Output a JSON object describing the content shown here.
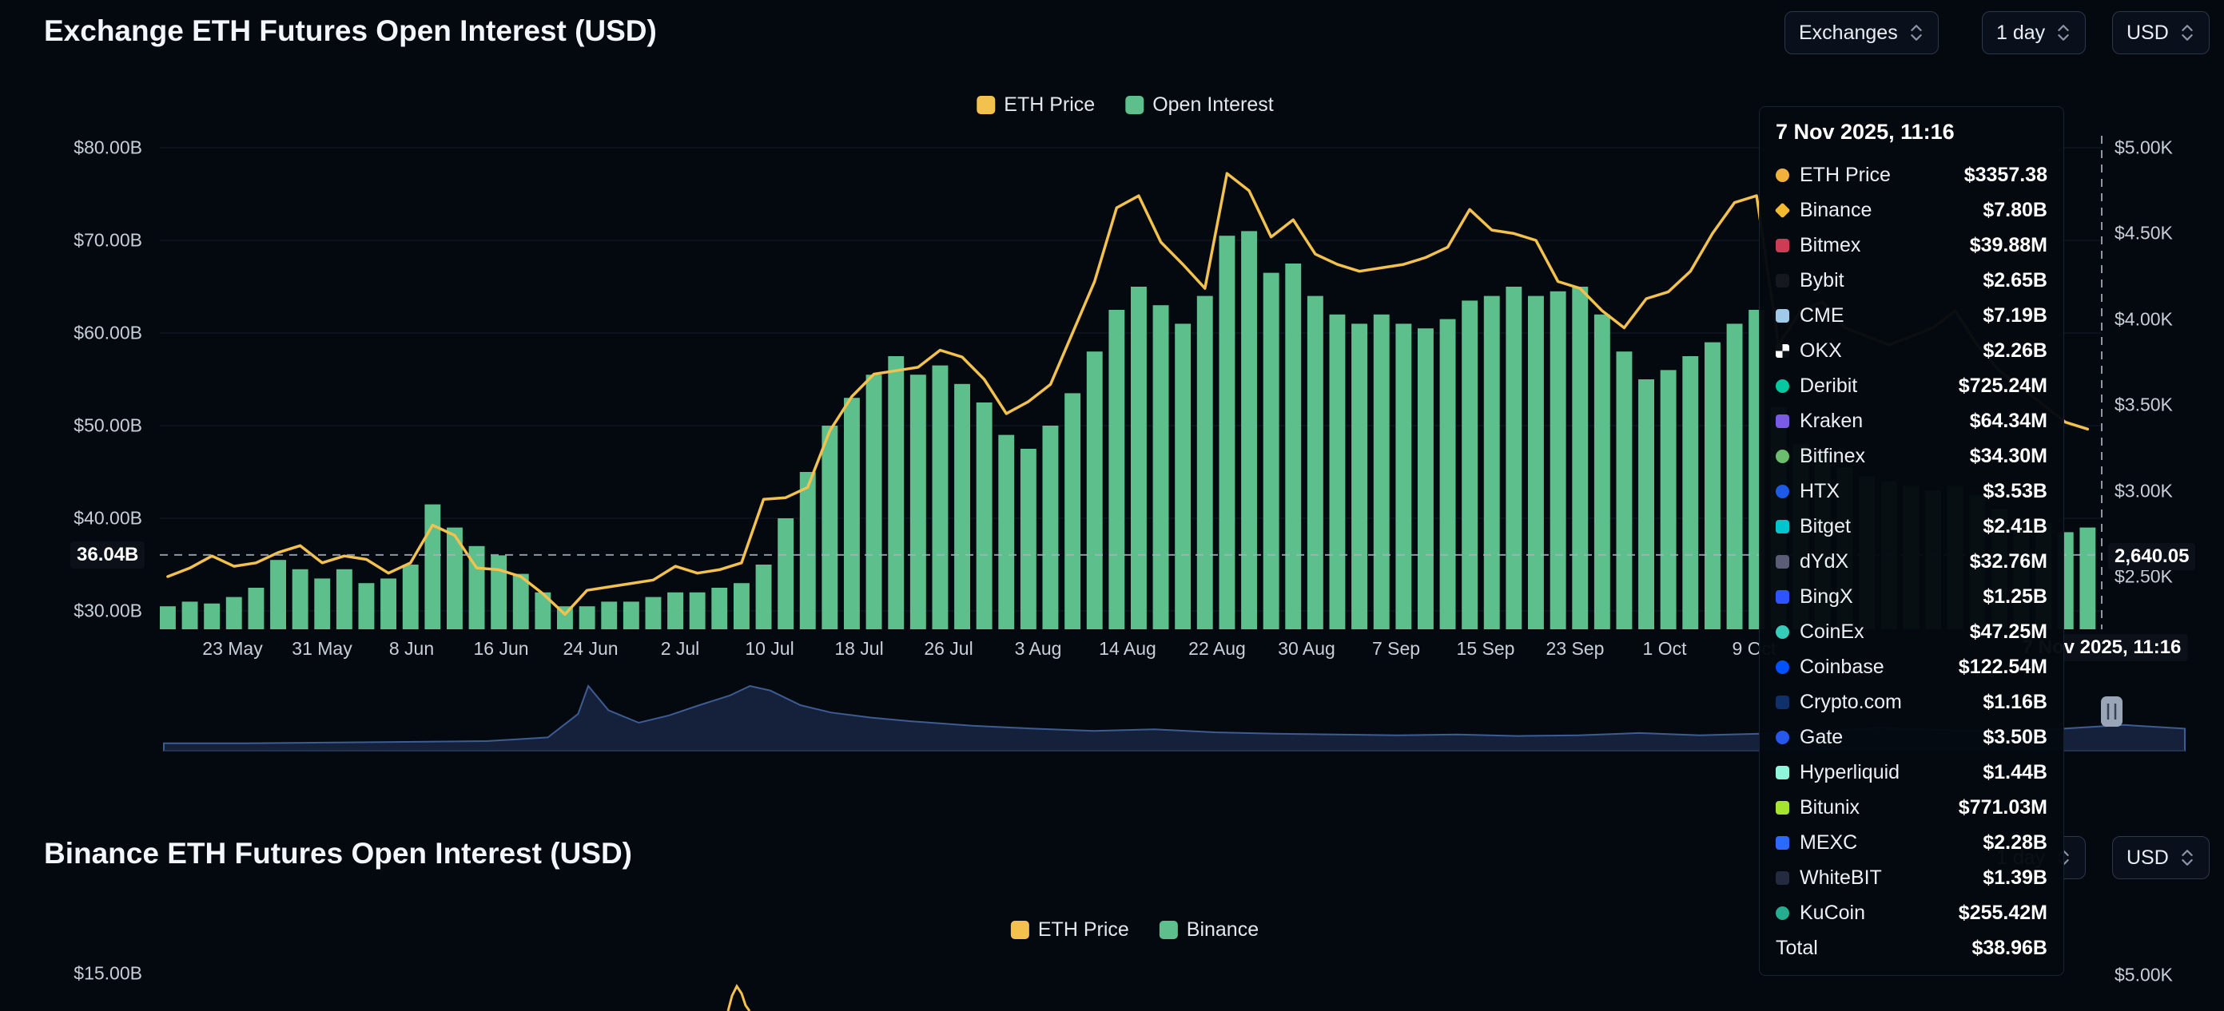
{
  "chart1": {
    "title": "Exchange ETH Futures Open Interest (USD)",
    "controls": [
      {
        "label": "Exchanges"
      },
      {
        "label": "1 day"
      },
      {
        "label": "USD"
      }
    ],
    "legend": [
      {
        "label": "ETH Price",
        "color": "#F2C14E"
      },
      {
        "label": "Open Interest",
        "color": "#5CBF8C"
      }
    ],
    "crosshair": {
      "y_left_label": "36.04B",
      "y_right_label": "2,640.05",
      "x_label": "7 Nov 2025, 11:16",
      "oi_value_billions": 36.04,
      "price_value": 2640.05
    }
  },
  "chart_data": [
    {
      "id": "exchange-eth-futures-open-interest",
      "type": "bar+line",
      "title": "Exchange ETH Futures Open Interest (USD)",
      "x_start": "2025-05-18",
      "x_step_days": 2,
      "x_end": "2025-11-07",
      "x_tick_labels": [
        "23 May",
        "31 May",
        "8 Jun",
        "16 Jun",
        "24 Jun",
        "2 Jul",
        "10 Jul",
        "18 Jul",
        "26 Jul",
        "3 Aug",
        "14 Aug",
        "22 Aug",
        "30 Aug",
        "7 Sep",
        "15 Sep",
        "23 Sep",
        "1 Oct",
        "9 Oct"
      ],
      "y_left": {
        "ticks": [
          "$80.00B",
          "$70.00B",
          "$60.00B",
          "$50.00B",
          "$40.00B",
          "$30.00B"
        ],
        "range_billions": [
          28,
          82
        ]
      },
      "y_right": {
        "ticks": [
          "$5.00K",
          "$4.50K",
          "$4.00K",
          "$3.50K",
          "$3.00K",
          "$2.50K"
        ],
        "range_thousands": [
          2.2,
          5.1
        ]
      },
      "grid": "horizontal-only",
      "legend_position": "top-center",
      "series": [
        {
          "name": "Open Interest",
          "type": "bar",
          "axis": "left",
          "unit": "USD billions",
          "color": "#5CBF8C",
          "values": [
            30.5,
            31.0,
            30.8,
            31.5,
            32.5,
            35.5,
            34.5,
            33.5,
            34.5,
            33.0,
            33.5,
            35.0,
            41.5,
            39.0,
            37.0,
            36.0,
            34.0,
            32.0,
            30.5,
            30.5,
            31.0,
            31.0,
            31.5,
            32.0,
            32.0,
            32.5,
            33.0,
            35.0,
            40.0,
            45.0,
            50.0,
            53.0,
            55.5,
            57.5,
            55.5,
            56.5,
            54.5,
            52.5,
            49.0,
            47.5,
            50.0,
            53.5,
            58.0,
            62.5,
            65.0,
            63.0,
            61.0,
            64.0,
            70.5,
            71.0,
            66.5,
            67.5,
            64.0,
            62.0,
            61.0,
            62.0,
            61.0,
            60.5,
            61.5,
            63.5,
            64.0,
            65.0,
            64.0,
            64.5,
            65.0,
            62.0,
            58.0,
            55.0,
            56.0,
            57.5,
            59.0,
            61.0,
            62.5,
            52.0,
            48.0,
            47.0,
            45.5,
            44.5,
            44.0,
            43.5,
            43.0,
            43.5,
            42.5,
            41.0,
            40.0,
            39.5,
            38.5,
            39.0
          ]
        },
        {
          "name": "ETH Price",
          "type": "line",
          "axis": "right",
          "unit": "USD thousands",
          "color": "#F2C14E",
          "values": [
            2.5,
            2.55,
            2.62,
            2.56,
            2.58,
            2.64,
            2.68,
            2.58,
            2.62,
            2.6,
            2.52,
            2.58,
            2.8,
            2.74,
            2.55,
            2.54,
            2.5,
            2.4,
            2.28,
            2.42,
            2.44,
            2.46,
            2.48,
            2.56,
            2.52,
            2.54,
            2.58,
            2.95,
            2.96,
            3.02,
            3.35,
            3.55,
            3.68,
            3.7,
            3.72,
            3.82,
            3.78,
            3.65,
            3.45,
            3.52,
            3.62,
            3.92,
            4.22,
            4.65,
            4.72,
            4.45,
            4.32,
            4.18,
            4.85,
            4.75,
            4.48,
            4.58,
            4.38,
            4.32,
            4.28,
            4.3,
            4.32,
            4.36,
            4.42,
            4.64,
            4.52,
            4.5,
            4.46,
            4.22,
            4.18,
            4.05,
            3.95,
            4.12,
            4.16,
            4.28,
            4.5,
            4.68,
            4.72,
            3.85,
            4.05,
            4.1,
            3.95,
            3.9,
            3.85,
            3.9,
            3.95,
            4.05,
            3.85,
            3.7,
            3.6,
            3.5,
            3.4,
            3.36
          ]
        }
      ],
      "navigator": {
        "description": "full-history mini area chart below main plot",
        "points": [
          [
            0,
            0.1
          ],
          [
            0.04,
            0.1
          ],
          [
            0.08,
            0.11
          ],
          [
            0.12,
            0.12
          ],
          [
            0.16,
            0.13
          ],
          [
            0.19,
            0.18
          ],
          [
            0.205,
            0.5
          ],
          [
            0.21,
            0.88
          ],
          [
            0.22,
            0.55
          ],
          [
            0.235,
            0.38
          ],
          [
            0.25,
            0.48
          ],
          [
            0.265,
            0.62
          ],
          [
            0.28,
            0.75
          ],
          [
            0.29,
            0.88
          ],
          [
            0.3,
            0.82
          ],
          [
            0.315,
            0.62
          ],
          [
            0.33,
            0.52
          ],
          [
            0.35,
            0.45
          ],
          [
            0.37,
            0.4
          ],
          [
            0.4,
            0.34
          ],
          [
            0.43,
            0.3
          ],
          [
            0.46,
            0.27
          ],
          [
            0.49,
            0.29
          ],
          [
            0.52,
            0.25
          ],
          [
            0.55,
            0.23
          ],
          [
            0.58,
            0.22
          ],
          [
            0.61,
            0.21
          ],
          [
            0.64,
            0.22
          ],
          [
            0.67,
            0.2
          ],
          [
            0.7,
            0.21
          ],
          [
            0.73,
            0.24
          ],
          [
            0.76,
            0.21
          ],
          [
            0.79,
            0.23
          ],
          [
            0.82,
            0.27
          ],
          [
            0.85,
            0.31
          ],
          [
            0.88,
            0.28
          ],
          [
            0.91,
            0.27
          ],
          [
            0.94,
            0.3
          ],
          [
            0.97,
            0.35
          ],
          [
            1,
            0.3
          ]
        ]
      }
    },
    {
      "id": "binance-eth-futures-open-interest",
      "type": "bar+line",
      "title": "Binance ETH Futures Open Interest (USD)",
      "note": "chart cropped at bottom of screenshot; only axis top labels and a sliver of the price line are visible",
      "y_left_tick": "$15.00B",
      "y_right_tick": "$5.00K",
      "price_sliver_points": [
        [
          911,
          1266
        ],
        [
          916,
          1247
        ],
        [
          922,
          1235
        ],
        [
          928,
          1244
        ],
        [
          933,
          1259
        ],
        [
          938,
          1266
        ]
      ]
    }
  ],
  "tooltip": {
    "date": "7 Nov 2025, 11:16",
    "rows": [
      {
        "name": "ETH Price",
        "value": "$3357.38",
        "color": "#F0B23C",
        "shape": "circle"
      },
      {
        "name": "Binance",
        "value": "$7.80B",
        "color": "#F3BA2F",
        "shape": "diamond"
      },
      {
        "name": "Bitmex",
        "value": "$39.88M",
        "color": "#CC3D55",
        "shape": "square"
      },
      {
        "name": "Bybit",
        "value": "$2.65B",
        "color": "#15191F",
        "shape": "square"
      },
      {
        "name": "CME",
        "value": "$7.19B",
        "color": "#9FC9E8",
        "shape": "square"
      },
      {
        "name": "OKX",
        "value": "$2.26B",
        "color": "#FFFFFF",
        "shape": "checker"
      },
      {
        "name": "Deribit",
        "value": "$725.24M",
        "color": "#05C7A0",
        "shape": "circle"
      },
      {
        "name": "Kraken",
        "value": "$64.34M",
        "color": "#7A5BE5",
        "shape": "square"
      },
      {
        "name": "Bitfinex",
        "value": "$34.30M",
        "color": "#6BBE6E",
        "shape": "circle"
      },
      {
        "name": "HTX",
        "value": "$3.53B",
        "color": "#1D5AE8",
        "shape": "circle"
      },
      {
        "name": "Bitget",
        "value": "$2.41B",
        "color": "#00C5CE",
        "shape": "square"
      },
      {
        "name": "dYdX",
        "value": "$32.76M",
        "color": "#5A5D75",
        "shape": "square"
      },
      {
        "name": "BingX",
        "value": "$1.25B",
        "color": "#2E54FF",
        "shape": "square"
      },
      {
        "name": "CoinEx",
        "value": "$47.25M",
        "color": "#35CDBA",
        "shape": "circle"
      },
      {
        "name": "Coinbase",
        "value": "$122.54M",
        "color": "#0052FF",
        "shape": "circle"
      },
      {
        "name": "Crypto.com",
        "value": "$1.16B",
        "color": "#10306B",
        "shape": "square"
      },
      {
        "name": "Gate",
        "value": "$3.50B",
        "color": "#2659E9",
        "shape": "circle"
      },
      {
        "name": "Hyperliquid",
        "value": "$1.44B",
        "color": "#8FF6DC",
        "shape": "square"
      },
      {
        "name": "Bitunix",
        "value": "$771.03M",
        "color": "#A6E432",
        "shape": "square"
      },
      {
        "name": "MEXC",
        "value": "$2.28B",
        "color": "#2B6AFF",
        "shape": "square"
      },
      {
        "name": "WhiteBIT",
        "value": "$1.39B",
        "color": "#242B40",
        "shape": "square"
      },
      {
        "name": "KuCoin",
        "value": "$255.42M",
        "color": "#24AE8F",
        "shape": "circle"
      },
      {
        "name": "Total",
        "value": "$38.96B",
        "color": null,
        "shape": null
      }
    ]
  },
  "chart2": {
    "title": "Binance ETH Futures Open Interest (USD)",
    "controls": [
      {
        "label": "1 day"
      },
      {
        "label": "USD"
      }
    ],
    "legend": [
      {
        "label": "ETH Price",
        "color": "#F2C14E"
      },
      {
        "label": "Binance",
        "color": "#5CBF8C"
      }
    ],
    "y_left_tick": "$15.00B",
    "y_right_tick": "$5.00K"
  },
  "colors": {
    "background": "#04090F",
    "bars": "#5CBF8C",
    "price_line": "#F2C14E",
    "axis_text": "#C9CFD9",
    "gridline": "#121A27",
    "navigator_fill": "#15213A",
    "navigator_stroke": "#3D5C94",
    "crosshair": "#A6B0C0"
  }
}
